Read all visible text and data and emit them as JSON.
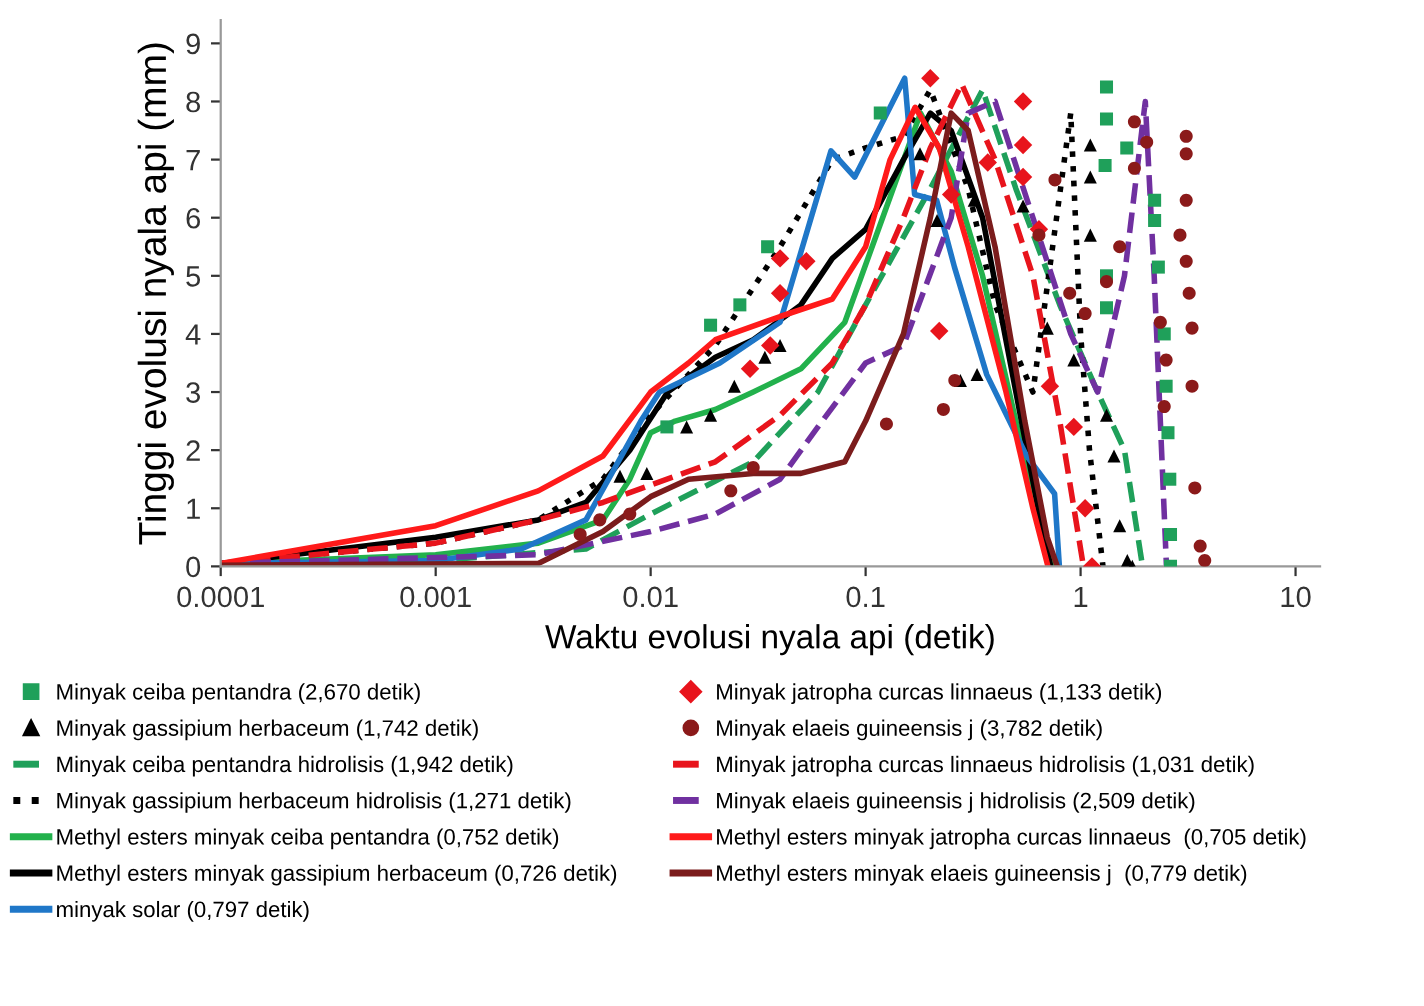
{
  "chart_data": {
    "type": "line",
    "xlabel": "Waktu evolusi nyala api (detik)",
    "ylabel": "Tinggi evolusi nyala api (mm)",
    "log": "x",
    "grid": false,
    "legend": "bottom",
    "xlim": [
      0.0001,
      13
    ],
    "xticks": [
      {
        "value": 0.0001,
        "label": "0.0001"
      },
      {
        "value": 0.001,
        "label": "0.001"
      },
      {
        "value": 0.01,
        "label": "0.01"
      },
      {
        "value": 0.1,
        "label": "0.1"
      },
      1,
      10
    ],
    "ylim": [
      0,
      9.4
    ],
    "yticks": [
      0,
      1,
      2,
      3,
      4,
      5,
      6,
      7,
      8,
      9
    ],
    "series": [
      {
        "name": "Minyak ceiba pentandra (2,670 detik)",
        "type": "scatter",
        "marker": "square",
        "color": "#1fa05a",
        "x": [
          0.0119,
          0.019,
          0.026,
          0.035,
          0.117,
          1.32,
          1.32,
          1.3,
          1.64,
          2.21,
          2.21,
          2.3,
          1.32,
          1.32,
          2.45,
          2.5,
          2.55,
          2.6,
          2.62,
          2.62
        ],
        "values": [
          2.4,
          4.15,
          4.5,
          5.5,
          7.8,
          8.25,
          7.7,
          6.9,
          7.2,
          6.3,
          5.95,
          5.15,
          5.0,
          4.45,
          4.0,
          3.1,
          2.3,
          1.5,
          0.55,
          0.0
        ]
      },
      {
        "name": "Minyak gassipium herbaceum (1,742 detik)",
        "type": "scatter",
        "marker": "triangle",
        "color": "#000000",
        "x": [
          0.0072,
          0.0096,
          0.0147,
          0.019,
          0.0245,
          0.034,
          0.04,
          0.179,
          0.215,
          0.276,
          0.33,
          0.32,
          0.54,
          0.7,
          0.93,
          1.11,
          1.11,
          1.11,
          1.32,
          1.43,
          1.52,
          1.65,
          1.74
        ],
        "values": [
          1.55,
          1.6,
          2.4,
          2.6,
          3.1,
          3.6,
          3.8,
          7.1,
          5.95,
          3.2,
          3.3,
          6.3,
          6.2,
          4.1,
          3.55,
          7.25,
          6.7,
          5.7,
          2.6,
          1.9,
          0.7,
          0.1,
          0.0
        ]
      },
      {
        "name": "Minyak ceiba pentandra hidrolisis (1,942 detik)",
        "line_style": "dashed",
        "color": "#1fa05a",
        "x": [
          0.0001,
          0.001,
          0.005,
          0.01,
          0.03,
          0.06,
          0.1,
          0.2,
          0.35,
          0.5,
          0.8,
          1.2,
          1.6,
          1.942
        ],
        "values": [
          0.05,
          0.1,
          0.3,
          0.9,
          1.8,
          3.0,
          4.5,
          6.5,
          8.2,
          6.5,
          4.5,
          3.0,
          2.0,
          0.0
        ]
      },
      {
        "name": "Minyak gassipium herbaceum hidrolisis (1,271 detik)",
        "line_style": "dotted",
        "color": "#000000",
        "x": [
          0.0001,
          0.001,
          0.003,
          0.006,
          0.01,
          0.02,
          0.04,
          0.07,
          0.1,
          0.15,
          0.2,
          0.3,
          0.4,
          0.6,
          0.9,
          1.0,
          1.1,
          1.271
        ],
        "values": [
          0.05,
          0.4,
          0.8,
          1.5,
          2.6,
          3.8,
          5.5,
          7.0,
          7.2,
          7.4,
          8.2,
          6.5,
          4.5,
          3.0,
          7.8,
          4.0,
          2.0,
          0.0
        ]
      },
      {
        "name": "Methyl esters minyak ceiba pentandra (0,752 detik)",
        "line_style": "solid",
        "color": "#22b14c",
        "x": [
          0.0001,
          0.001,
          0.003,
          0.006,
          0.008,
          0.01,
          0.013,
          0.02,
          0.03,
          0.05,
          0.08,
          0.12,
          0.18,
          0.25,
          0.35,
          0.5,
          0.65,
          0.752
        ],
        "values": [
          0.05,
          0.2,
          0.4,
          0.8,
          1.5,
          2.3,
          2.5,
          2.7,
          3.0,
          3.4,
          4.2,
          6.0,
          7.8,
          6.8,
          5.0,
          2.5,
          0.8,
          0.0
        ]
      },
      {
        "name": "Methyl esters minyak gassipium herbaceum (0,726 detik)",
        "line_style": "solid",
        "color": "#000000",
        "x": [
          0.0001,
          0.001,
          0.003,
          0.005,
          0.008,
          0.012,
          0.02,
          0.03,
          0.05,
          0.07,
          0.1,
          0.15,
          0.2,
          0.25,
          0.35,
          0.5,
          0.65,
          0.726
        ],
        "values": [
          0.05,
          0.5,
          0.8,
          1.1,
          2.0,
          3.0,
          3.6,
          3.9,
          4.5,
          5.3,
          5.8,
          7.0,
          7.8,
          7.5,
          6.0,
          3.0,
          0.8,
          0.0
        ]
      },
      {
        "name": "minyak solar (0,797 detik)",
        "line_style": "solid",
        "color": "#1f77c8",
        "x": [
          0.0001,
          0.001,
          0.0025,
          0.005,
          0.009,
          0.011,
          0.021,
          0.04,
          0.069,
          0.089,
          0.152,
          0.169,
          0.214,
          0.259,
          0.366,
          0.561,
          0.757,
          0.797
        ],
        "values": [
          0.05,
          0.1,
          0.3,
          0.8,
          2.5,
          3.0,
          3.5,
          4.2,
          7.15,
          6.7,
          8.4,
          6.4,
          6.3,
          5.15,
          3.3,
          1.9,
          1.25,
          0.0
        ]
      },
      {
        "name": "Minyak jatropha curcas linnaeus (1,133 detik)",
        "type": "scatter",
        "marker": "diamond",
        "color": "#e8141c",
        "x": [
          0.029,
          0.036,
          0.04,
          0.04,
          0.053,
          0.2,
          0.22,
          0.25,
          0.37,
          0.54,
          0.54,
          0.54,
          0.64,
          0.72,
          0.93,
          1.05,
          1.13
        ],
        "values": [
          3.4,
          3.8,
          4.7,
          5.3,
          5.25,
          8.4,
          4.05,
          6.4,
          6.95,
          8.0,
          7.25,
          6.7,
          5.8,
          3.1,
          2.4,
          1.0,
          0.0
        ]
      },
      {
        "name": "Minyak elaeis guineensis j (3,782 detik)",
        "type": "scatter",
        "marker": "circle",
        "color": "#8b1a1a",
        "x": [
          0.0047,
          0.0058,
          0.008,
          0.0236,
          0.03,
          0.125,
          0.23,
          0.26,
          0.64,
          0.76,
          0.89,
          1.05,
          1.32,
          1.52,
          1.78,
          1.78,
          2.03,
          2.35,
          2.5,
          2.45,
          2.9,
          3.1,
          3.1,
          3.1,
          3.1,
          3.2,
          3.3,
          3.3,
          3.4,
          3.6,
          3.78
        ],
        "values": [
          0.55,
          0.8,
          0.9,
          1.3,
          1.7,
          2.45,
          2.7,
          3.2,
          5.7,
          6.65,
          4.7,
          4.35,
          4.9,
          5.5,
          7.65,
          6.85,
          7.3,
          4.2,
          3.55,
          2.75,
          5.7,
          7.4,
          7.1,
          6.3,
          5.25,
          4.7,
          4.1,
          3.1,
          1.35,
          0.35,
          0.1
        ]
      },
      {
        "name": "Minyak jatropha curcas linnaeus hidrolisis (1,031 detik)",
        "line_style": "dashed",
        "color": "#e8141c",
        "x": [
          0.0001,
          0.001,
          0.003,
          0.006,
          0.01,
          0.02,
          0.04,
          0.07,
          0.1,
          0.15,
          0.2,
          0.28,
          0.4,
          0.6,
          0.8,
          1.031
        ],
        "values": [
          0.05,
          0.4,
          0.8,
          1.1,
          1.4,
          1.8,
          2.6,
          3.5,
          4.5,
          6.0,
          7.2,
          8.3,
          7.0,
          5.0,
          2.5,
          0.0
        ]
      },
      {
        "name": "Minyak elaeis guineensis j hidrolisis (2,509 detik)",
        "line_style": "dashed",
        "color": "#7030a0",
        "x": [
          0.0001,
          0.003,
          0.01,
          0.02,
          0.04,
          0.06,
          0.1,
          0.15,
          0.25,
          0.3,
          0.4,
          0.6,
          0.9,
          1.2,
          1.6,
          2.0,
          2.2,
          2.509
        ],
        "values": [
          0.05,
          0.2,
          0.6,
          0.9,
          1.5,
          2.4,
          3.5,
          3.8,
          6.0,
          7.8,
          8.0,
          6.0,
          4.0,
          3.0,
          5.0,
          8.0,
          5.0,
          0.0
        ]
      },
      {
        "name": "Methyl esters minyak jatropha curcas linnaeus  (0,705 detik)",
        "line_style": "solid",
        "color": "#ff1a1a",
        "x": [
          0.0001,
          0.001,
          0.003,
          0.006,
          0.01,
          0.015,
          0.02,
          0.04,
          0.07,
          0.1,
          0.13,
          0.17,
          0.22,
          0.3,
          0.45,
          0.6,
          0.705
        ],
        "values": [
          0.05,
          0.7,
          1.3,
          1.9,
          3.0,
          3.5,
          3.9,
          4.3,
          4.6,
          5.5,
          7.0,
          7.9,
          7.2,
          5.5,
          3.0,
          1.0,
          0.0
        ]
      },
      {
        "name": "Methyl esters minyak elaeis guineensis j  (0,779 detik)",
        "line_style": "solid",
        "color": "#7b1c1c",
        "x": [
          0.0001,
          0.003,
          0.006,
          0.01,
          0.015,
          0.03,
          0.05,
          0.08,
          0.1,
          0.15,
          0.2,
          0.25,
          0.3,
          0.4,
          0.55,
          0.7,
          0.779
        ],
        "values": [
          0.02,
          0.05,
          0.6,
          1.2,
          1.5,
          1.6,
          1.6,
          1.8,
          2.5,
          4.0,
          6.0,
          7.8,
          7.5,
          5.5,
          2.5,
          0.5,
          0.0
        ]
      }
    ]
  }
}
